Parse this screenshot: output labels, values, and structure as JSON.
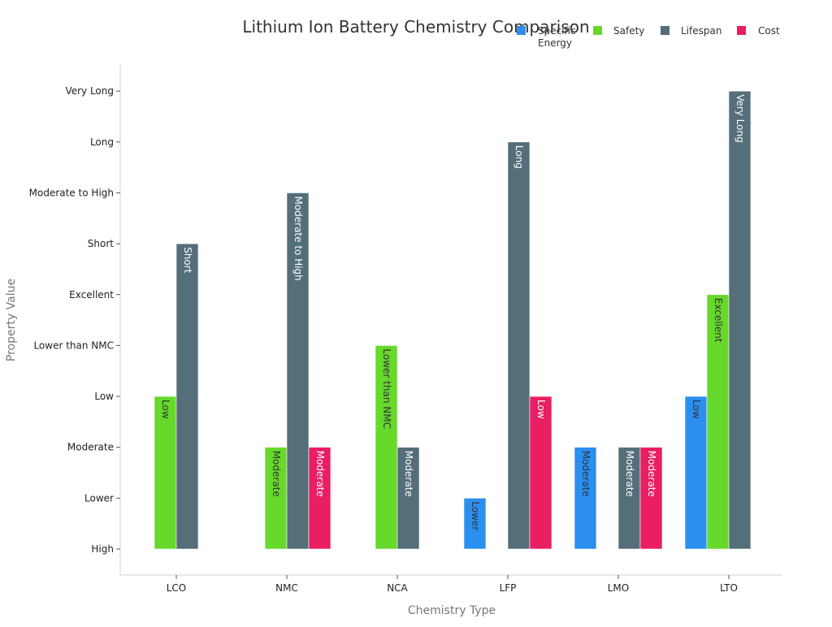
{
  "chart_data": {
    "type": "bar",
    "title": "Lithium Ion Battery Chemistry Comparison",
    "xlabel": "Chemistry Type",
    "ylabel": "Property Value",
    "categories": [
      "LCO",
      "NMC",
      "NCA",
      "LFP",
      "LMO",
      "LTO"
    ],
    "y_ticks": [
      "High",
      "Lower",
      "Moderate",
      "Low",
      "Lower than NMC",
      "Excellent",
      "Short",
      "Moderate to High",
      "Long",
      "Very Long"
    ],
    "series": [
      {
        "name": "Specific Energy",
        "legend_lines": [
          "Specific",
          "Energy"
        ],
        "color": "#2b8ff0",
        "text_color": "#333333",
        "values": [
          null,
          null,
          null,
          "Lower",
          "Moderate",
          "Low"
        ]
      },
      {
        "name": "Safety",
        "legend_lines": [
          "Safety"
        ],
        "color": "#66d92b",
        "text_color": "#333333",
        "values": [
          "Low",
          "Moderate",
          "Lower than NMC",
          null,
          null,
          "Excellent"
        ]
      },
      {
        "name": "Lifespan",
        "legend_lines": [
          "Lifespan"
        ],
        "color": "#546e7a",
        "text_color": "#ffffff",
        "values": [
          "Short",
          "Moderate to High",
          "Moderate",
          "Long",
          "Moderate",
          "Very Long"
        ]
      },
      {
        "name": "Cost",
        "legend_lines": [
          "Cost"
        ],
        "color": "#e91e63",
        "text_color": "#ffffff",
        "values": [
          null,
          "Moderate",
          null,
          "Low",
          "Moderate",
          null
        ]
      }
    ],
    "legend_position": "top-right",
    "grid": false
  }
}
